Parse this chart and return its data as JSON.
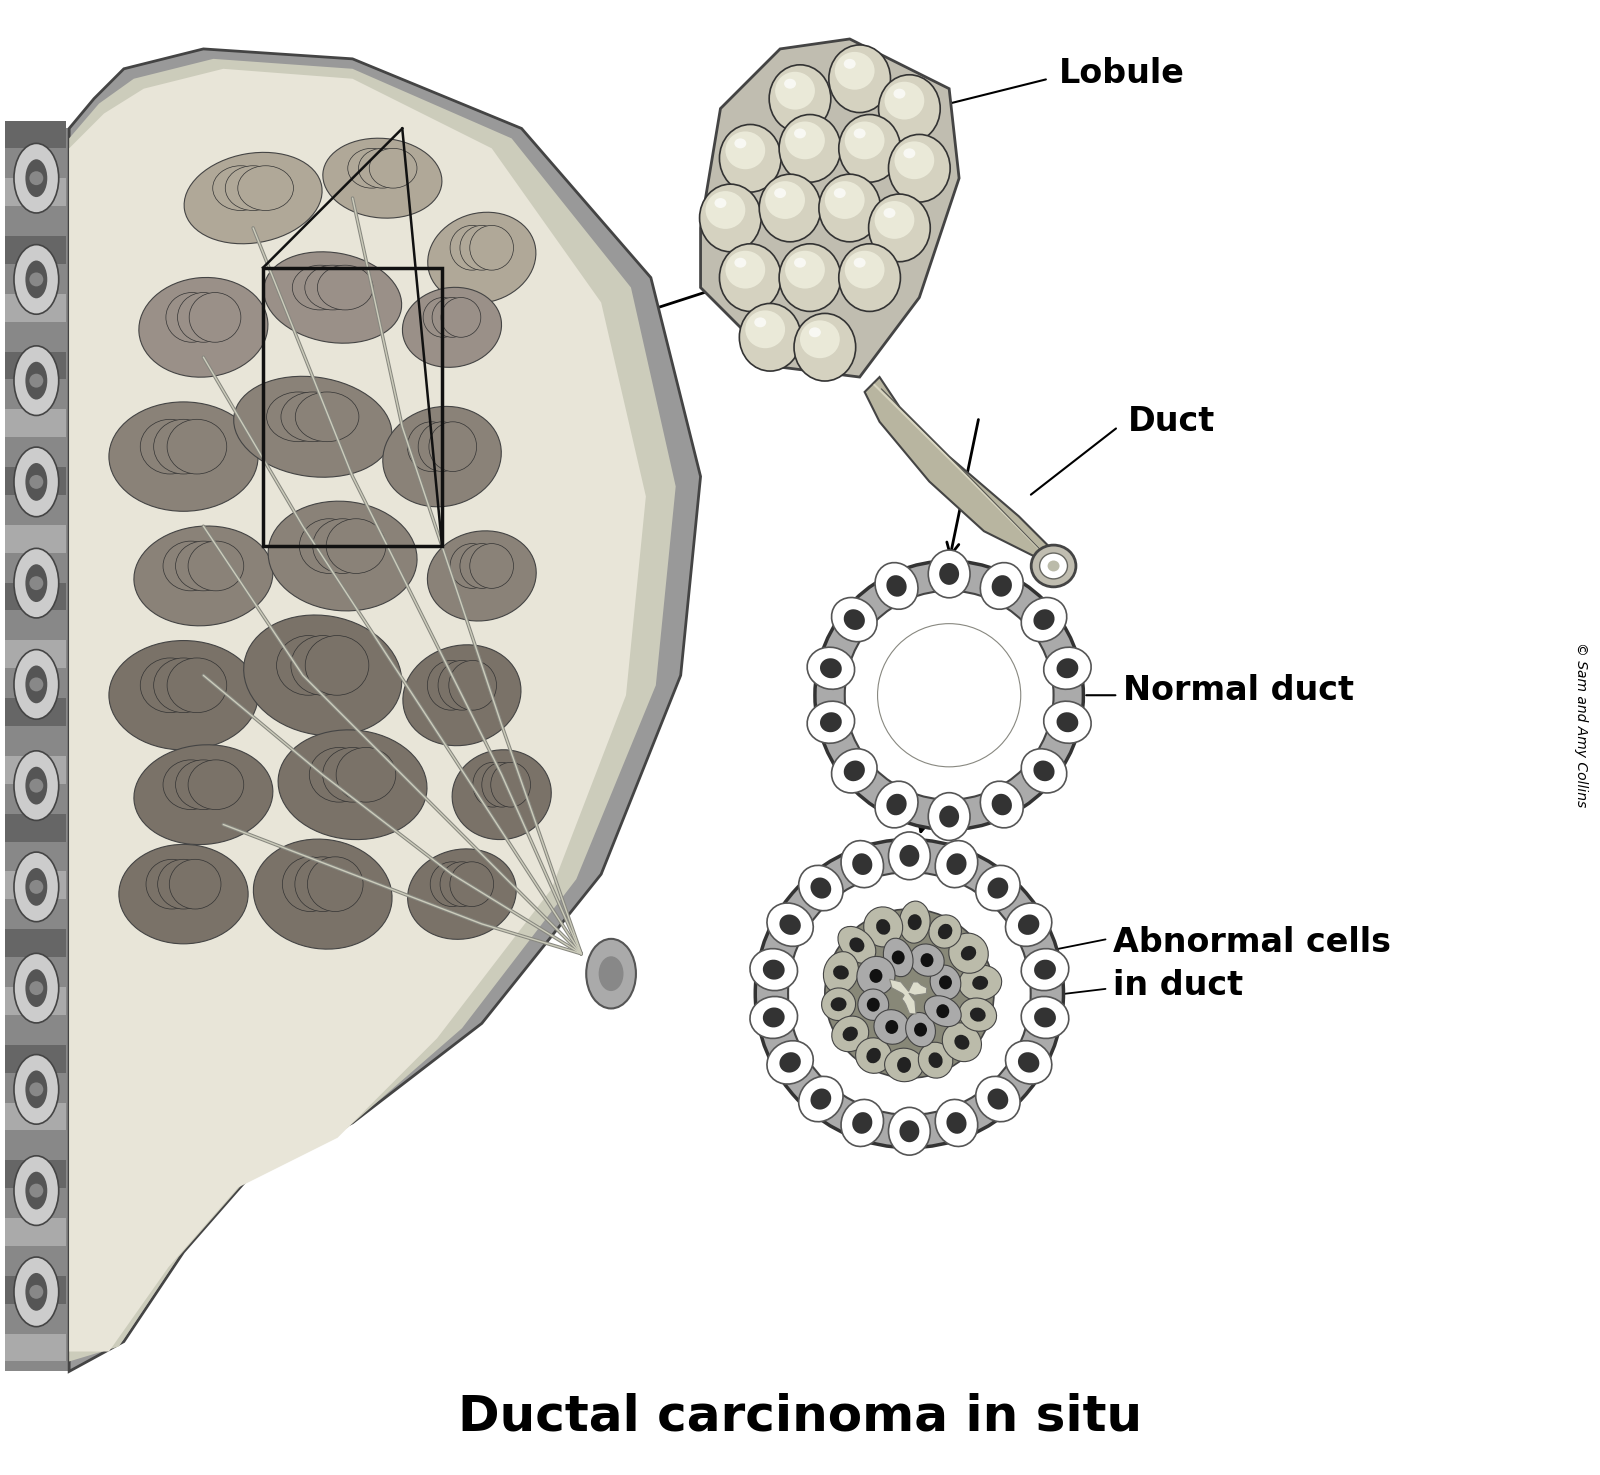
{
  "title": "Ductal carcinoma in situ",
  "title_fontsize": 36,
  "title_fontweight": "bold",
  "labels": {
    "lobule": "Lobule",
    "duct": "Duct",
    "normal_duct": "Normal duct",
    "abnormal_cells": "Abnormal cells\nin duct",
    "copyright": "© Sam and Amy Collins"
  },
  "label_fontsize": 24,
  "label_fontweight": "bold",
  "background_color": "#ffffff",
  "figsize": [
    16.0,
    14.75
  ],
  "dpi": 100
}
